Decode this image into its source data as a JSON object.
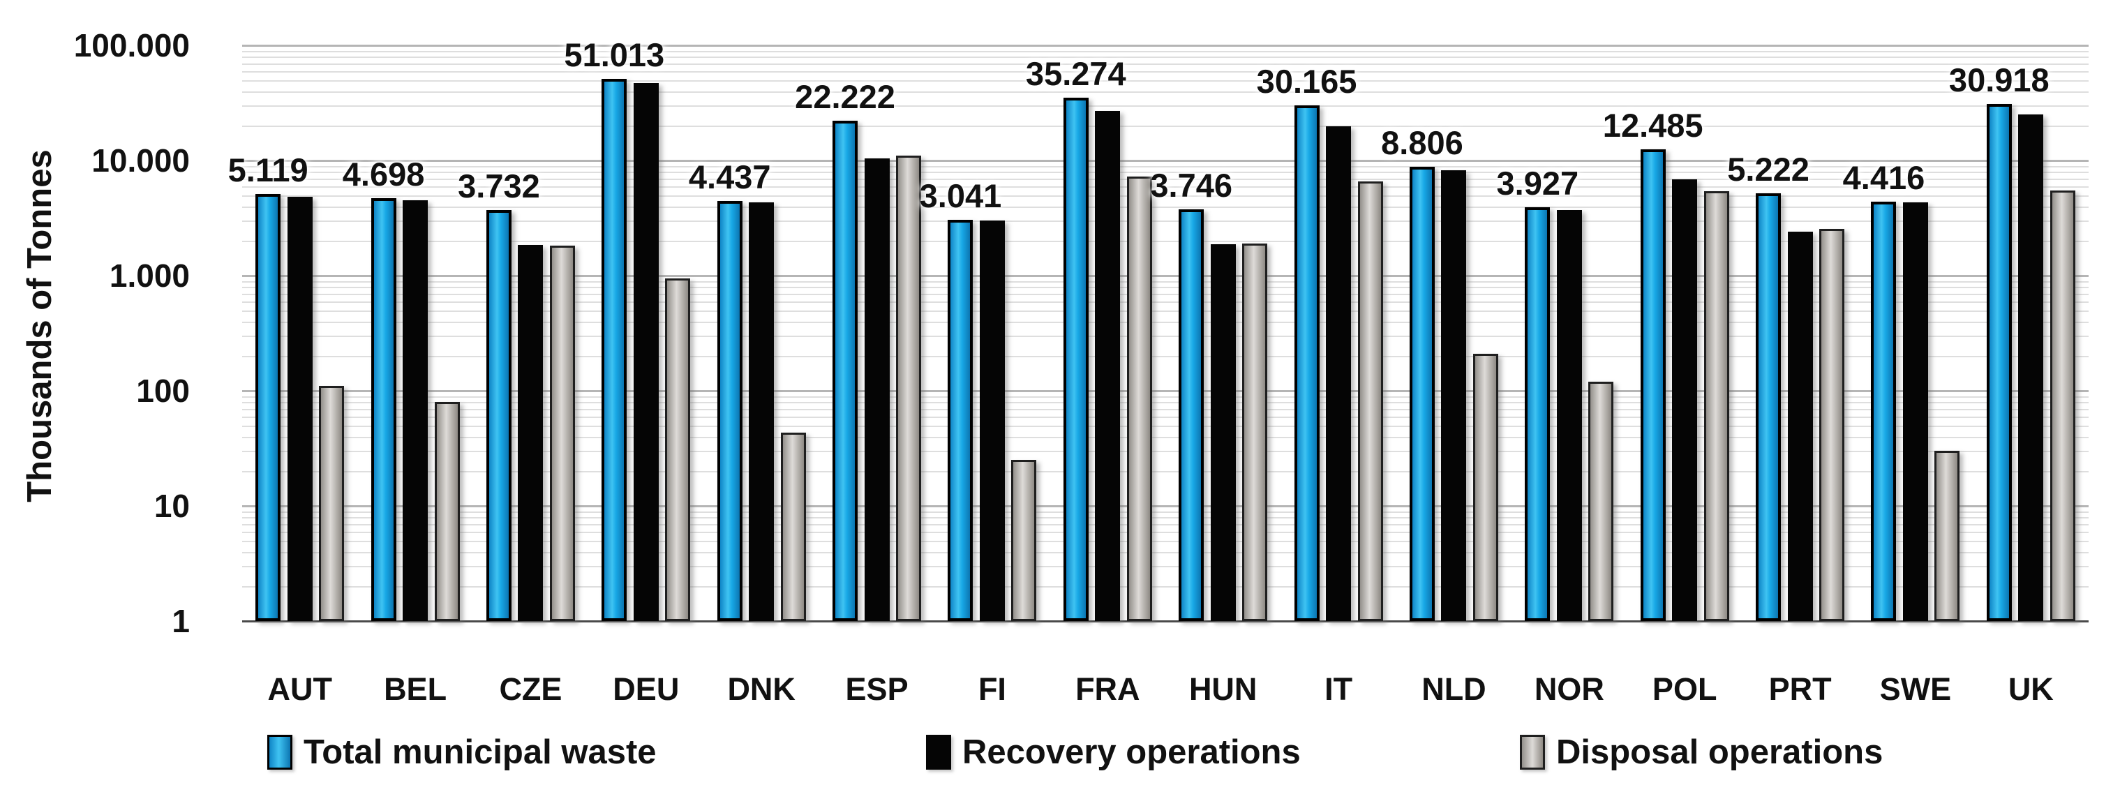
{
  "y_axis": {
    "title": "Thousands of Tonnes",
    "ticks": [
      "100.000",
      "10.000",
      "1.000",
      "100",
      "10",
      "1"
    ]
  },
  "legend": [
    {
      "label": "Total municipal waste",
      "color": "#18a8e6"
    },
    {
      "label": "Recovery operations",
      "color": "#050505"
    },
    {
      "label": "Disposal operations",
      "color": "#b3aeaa"
    }
  ],
  "chart_data": {
    "type": "bar",
    "scale": "log",
    "ylim": [
      1,
      100000
    ],
    "grid": true,
    "legend_position": "bottom",
    "ylabel": "Thousands of Tonnes",
    "xlabel": "",
    "categories": [
      "AUT",
      "BEL",
      "CZE",
      "DEU",
      "DNK",
      "ESP",
      "FI",
      "FRA",
      "HUN",
      "IT",
      "NLD",
      "NOR",
      "POL",
      "PRT",
      "SWE",
      "UK"
    ],
    "series": [
      {
        "name": "Total municipal waste",
        "values": [
          5119,
          4698,
          3732,
          51013,
          4437,
          22222,
          3041,
          35274,
          3746,
          30165,
          8806,
          3927,
          12485,
          5222,
          4416,
          30918
        ],
        "data_labels": [
          "5.119",
          "4.698",
          "3.732",
          "51.013",
          "4.437",
          "22.222",
          "3.041",
          "35.274",
          "3.746",
          "30.165",
          "8.806",
          "3.927",
          "12.485",
          "5.222",
          "4.416",
          "30.918"
        ]
      },
      {
        "name": "Recovery operations",
        "values": [
          4830,
          4500,
          1850,
          47000,
          4300,
          10400,
          3000,
          27000,
          1870,
          19800,
          8200,
          3700,
          6900,
          2400,
          4300,
          25000
        ],
        "data_labels": []
      },
      {
        "name": "Disposal operations",
        "values": [
          110,
          80,
          1820,
          950,
          43,
          11000,
          25,
          7250,
          1900,
          6600,
          210,
          120,
          5400,
          2550,
          30,
          5500
        ],
        "data_labels": []
      }
    ]
  }
}
